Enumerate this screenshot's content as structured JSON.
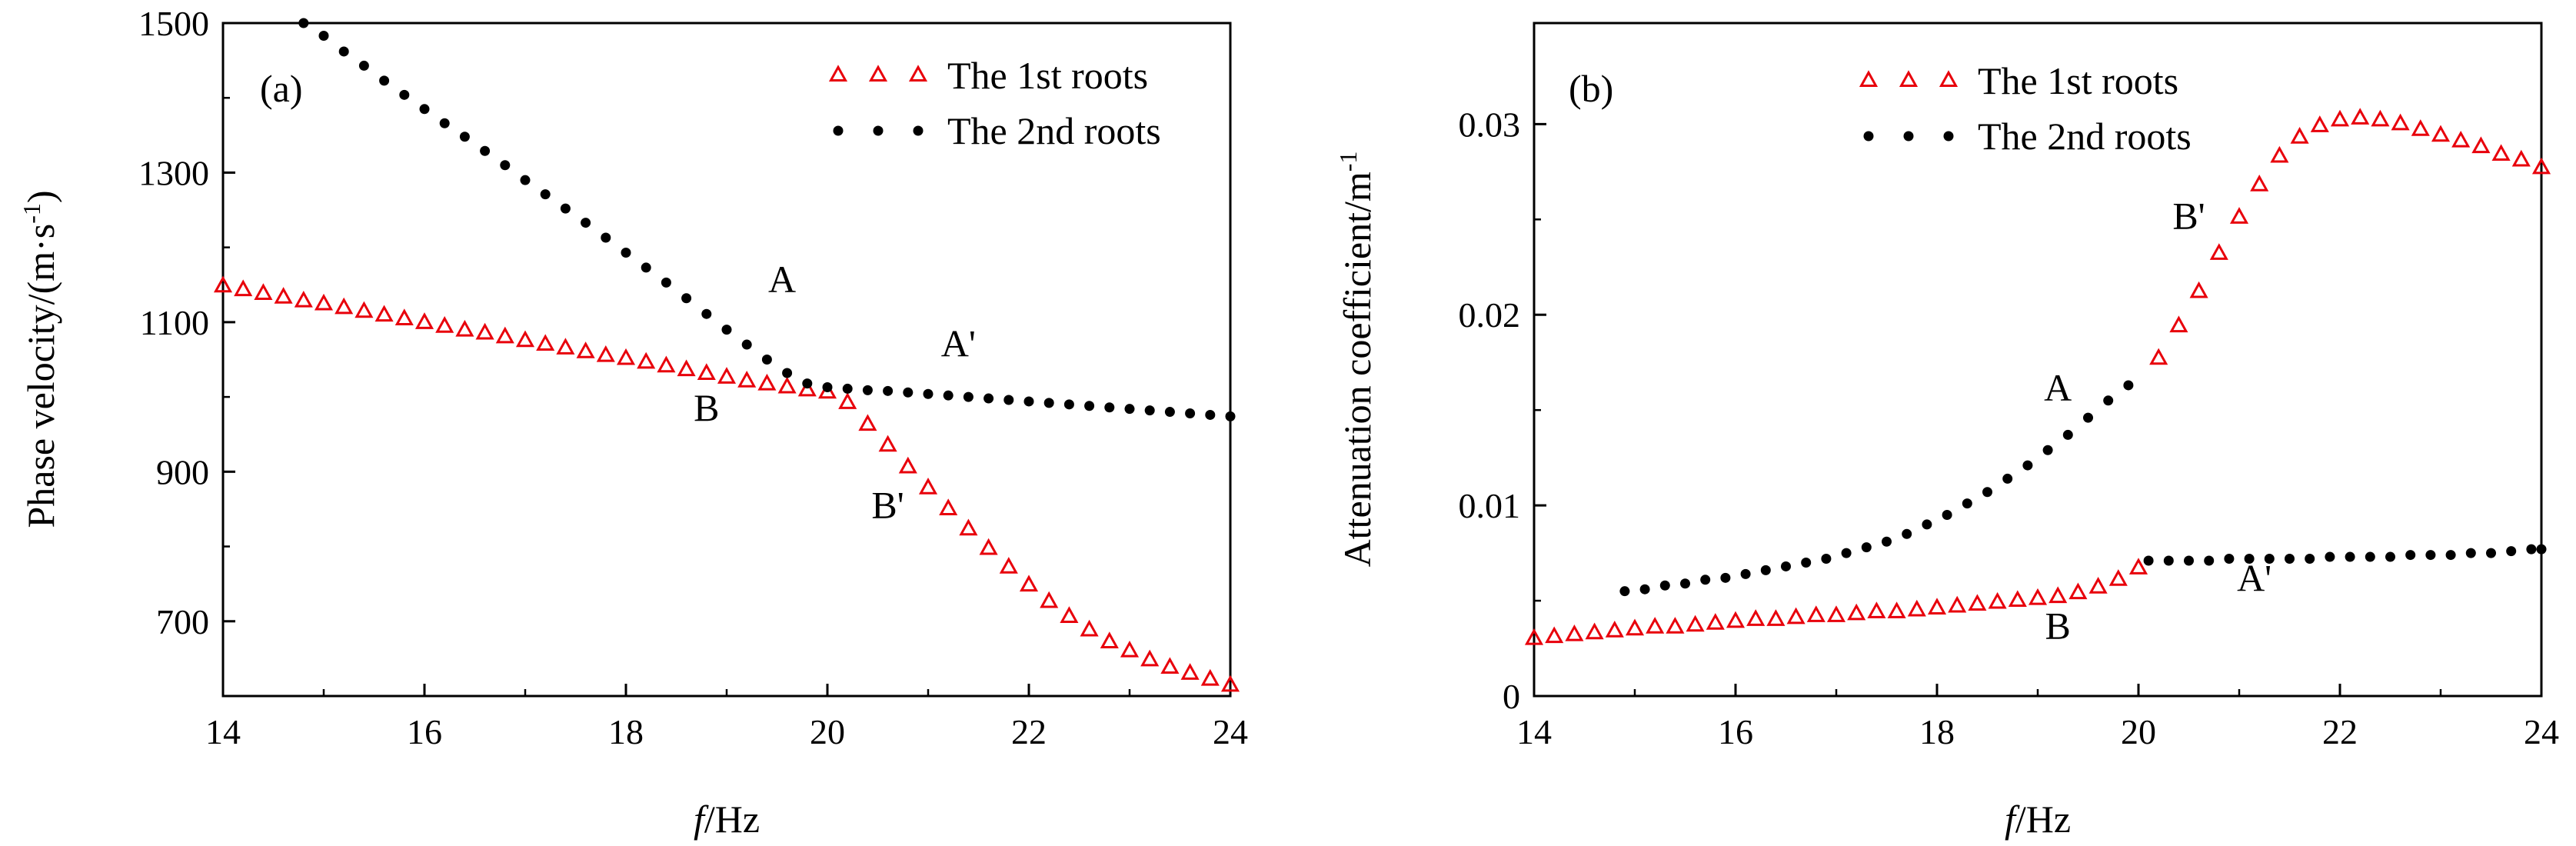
{
  "chart_data": [
    {
      "panel": "(a)",
      "type": "scatter",
      "xlabel_italic": "f",
      "xlabel": "/Hz",
      "ylabel": "Phase velocity/(m·s",
      "ylabel_sup": "-1",
      "ylabel_end": ")",
      "xlim": [
        14,
        24
      ],
      "ylim": [
        600,
        1500
      ],
      "xticks": [
        14,
        16,
        18,
        20,
        22,
        24
      ],
      "yticks": [
        700,
        900,
        1100,
        1300,
        1500
      ],
      "legend": [
        "The 1st roots",
        "The 2nd roots"
      ],
      "series": [
        {
          "name": "The 1st roots",
          "marker": "triangle",
          "color": "#e8000b",
          "x": [
            14.0,
            14.2,
            14.4,
            14.6,
            14.8,
            15.0,
            15.2,
            15.4,
            15.6,
            15.8,
            16.0,
            16.2,
            16.4,
            16.6,
            16.8,
            17.0,
            17.2,
            17.4,
            17.6,
            17.8,
            18.0,
            18.2,
            18.4,
            18.6,
            18.8,
            19.0,
            19.2,
            19.4,
            19.6,
            19.8,
            20.0,
            20.2,
            20.4,
            20.6,
            20.8,
            21.0,
            21.2,
            21.4,
            21.6,
            21.8,
            22.0,
            22.2,
            22.4,
            22.6,
            22.8,
            23.0,
            23.2,
            23.4,
            23.6,
            23.8,
            24.0
          ],
          "y": [
            1148,
            1143,
            1138,
            1133,
            1128,
            1124,
            1119,
            1114,
            1109,
            1104,
            1099,
            1094,
            1089,
            1085,
            1080,
            1075,
            1070,
            1065,
            1060,
            1055,
            1051,
            1046,
            1041,
            1036,
            1031,
            1026,
            1021,
            1017,
            1013,
            1009,
            1006,
            992,
            963,
            935,
            906,
            878,
            850,
            823,
            797,
            772,
            748,
            726,
            706,
            688,
            672,
            660,
            648,
            638,
            630,
            622,
            614
          ]
        },
        {
          "name": "The 2nd roots",
          "marker": "dot",
          "color": "#000000",
          "x": [
            14.8,
            15.0,
            15.2,
            15.4,
            15.6,
            15.8,
            16.0,
            16.2,
            16.4,
            16.6,
            16.8,
            17.0,
            17.2,
            17.4,
            17.6,
            17.8,
            18.0,
            18.2,
            18.4,
            18.6,
            18.8,
            19.0,
            19.2,
            19.4,
            19.6,
            19.8,
            20.0,
            20.2,
            20.4,
            20.6,
            20.8,
            21.0,
            21.2,
            21.4,
            21.6,
            21.8,
            22.0,
            22.2,
            22.4,
            22.6,
            22.8,
            23.0,
            23.2,
            23.4,
            23.6,
            23.8,
            24.0
          ],
          "y": [
            1500,
            1483,
            1462,
            1443,
            1423,
            1404,
            1385,
            1366,
            1348,
            1329,
            1310,
            1290,
            1271,
            1252,
            1233,
            1213,
            1193,
            1173,
            1153,
            1132,
            1111,
            1090,
            1070,
            1050,
            1032,
            1018,
            1013,
            1011,
            1009,
            1008,
            1006,
            1004,
            1002,
            1000,
            998,
            996,
            994,
            992,
            990,
            988,
            986,
            984,
            982,
            980,
            978,
            976,
            974
          ]
        }
      ],
      "annotations": [
        {
          "text": "A",
          "x": 19.55,
          "y": 1140
        },
        {
          "text": "A'",
          "x": 21.3,
          "y": 1054
        },
        {
          "text": "B",
          "x": 18.8,
          "y": 968
        },
        {
          "text": "B'",
          "x": 20.6,
          "y": 838
        }
      ]
    },
    {
      "panel": "(b)",
      "type": "scatter",
      "xlabel_italic": "f",
      "xlabel": "/Hz",
      "ylabel": "Attenuation coefficient/m",
      "ylabel_sup": "-1",
      "ylabel_end": "",
      "xlim": [
        14,
        24
      ],
      "ylim": [
        0,
        0.0353
      ],
      "xticks": [
        14,
        16,
        18,
        20,
        22,
        24
      ],
      "yticks": [
        0,
        0.01,
        0.02,
        0.03
      ],
      "ytick_labels": [
        "0",
        "0.01",
        "0.02",
        "0.03"
      ],
      "legend": [
        "The 1st roots",
        "The 2nd roots"
      ],
      "series": [
        {
          "name": "The 1st roots",
          "marker": "triangle",
          "color": "#e8000b",
          "x": [
            14.0,
            14.2,
            14.4,
            14.6,
            14.8,
            15.0,
            15.2,
            15.4,
            15.6,
            15.8,
            16.0,
            16.2,
            16.4,
            16.6,
            16.8,
            17.0,
            17.2,
            17.4,
            17.6,
            17.8,
            18.0,
            18.2,
            18.4,
            18.6,
            18.8,
            19.0,
            19.2,
            19.4,
            19.6,
            19.8,
            20.0,
            20.2,
            20.4,
            20.6,
            20.8,
            21.0,
            21.2,
            21.4,
            21.6,
            21.8,
            22.0,
            22.2,
            22.4,
            22.6,
            22.8,
            23.0,
            23.2,
            23.4,
            23.6,
            23.8,
            24.0
          ],
          "y": [
            0.003,
            0.0031,
            0.0032,
            0.0033,
            0.0034,
            0.0035,
            0.0036,
            0.0036,
            0.0037,
            0.0038,
            0.0039,
            0.004,
            0.004,
            0.0041,
            0.0042,
            0.0042,
            0.0043,
            0.0044,
            0.0044,
            0.0045,
            0.0046,
            0.0047,
            0.0048,
            0.0049,
            0.005,
            0.0051,
            0.0052,
            0.0054,
            0.0057,
            0.0061,
            0.0067,
            0.0177,
            0.0194,
            0.0212,
            0.0232,
            0.0251,
            0.0268,
            0.0283,
            0.0293,
            0.0299,
            0.0302,
            0.0303,
            0.0302,
            0.03,
            0.0297,
            0.0294,
            0.0291,
            0.0288,
            0.0284,
            0.0281,
            0.0277
          ]
        },
        {
          "name": "The 2nd roots",
          "marker": "dot",
          "color": "#000000",
          "x": [
            14.9,
            15.1,
            15.3,
            15.5,
            15.7,
            15.9,
            16.1,
            16.3,
            16.5,
            16.7,
            16.9,
            17.1,
            17.3,
            17.5,
            17.7,
            17.9,
            18.1,
            18.3,
            18.5,
            18.7,
            18.9,
            19.1,
            19.3,
            19.5,
            19.7,
            19.9,
            20.1,
            20.3,
            20.5,
            20.7,
            20.9,
            21.1,
            21.3,
            21.5,
            21.7,
            21.9,
            22.1,
            22.3,
            22.5,
            22.7,
            22.9,
            23.1,
            23.3,
            23.5,
            23.7,
            23.9,
            24.0
          ],
          "y": [
            0.0055,
            0.0056,
            0.0058,
            0.0059,
            0.0061,
            0.0062,
            0.0064,
            0.0066,
            0.0068,
            0.007,
            0.0072,
            0.0075,
            0.0078,
            0.0081,
            0.0085,
            0.009,
            0.0095,
            0.0101,
            0.0107,
            0.0114,
            0.0121,
            0.0129,
            0.0137,
            0.0146,
            0.0155,
            0.0163,
            0.0071,
            0.0071,
            0.0071,
            0.0071,
            0.0072,
            0.0072,
            0.0072,
            0.0072,
            0.0072,
            0.0073,
            0.0073,
            0.0073,
            0.0073,
            0.0074,
            0.0074,
            0.0074,
            0.0075,
            0.0075,
            0.0076,
            0.0077,
            0.0077
          ]
        }
      ],
      "annotations": [
        {
          "text": "A",
          "x": 19.2,
          "y": 0.0155
        },
        {
          "text": "A'",
          "x": 21.15,
          "y": 0.0055
        },
        {
          "text": "B",
          "x": 19.2,
          "y": 0.003
        },
        {
          "text": "B'",
          "x": 20.5,
          "y": 0.0245
        }
      ]
    }
  ]
}
